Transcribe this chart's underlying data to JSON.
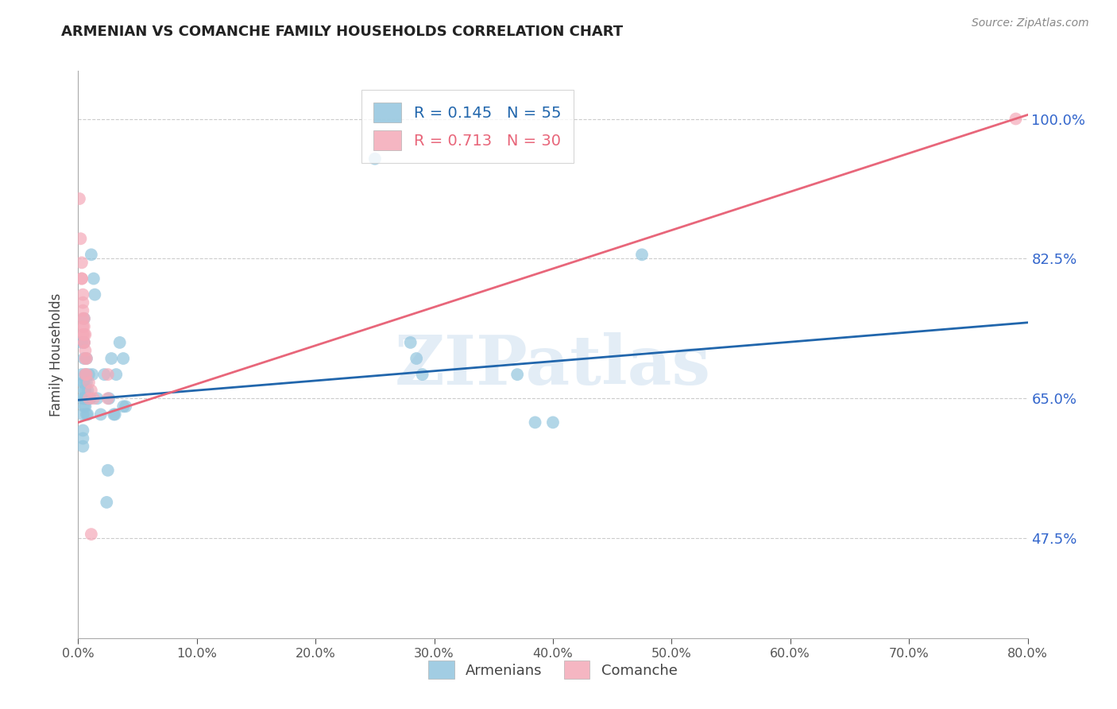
{
  "title": "ARMENIAN VS COMANCHE FAMILY HOUSEHOLDS CORRELATION CHART",
  "source": "Source: ZipAtlas.com",
  "ylabel": "Family Households",
  "ytick_labels": [
    "100.0%",
    "82.5%",
    "65.0%",
    "47.5%"
  ],
  "ytick_values": [
    1.0,
    0.825,
    0.65,
    0.475
  ],
  "legend_entry1": {
    "label": "Armenians",
    "R": "0.145",
    "N": "55",
    "color": "#92c5de"
  },
  "legend_entry2": {
    "label": "Comanche",
    "R": "0.713",
    "N": "30",
    "color": "#f4a9b8"
  },
  "watermark": "ZIPatlas",
  "background_color": "#ffffff",
  "title_color": "#222222",
  "ytick_color": "#3366cc",
  "scatter_armenians": [
    [
      0.003,
      0.72
    ],
    [
      0.003,
      0.68
    ],
    [
      0.004,
      0.67
    ],
    [
      0.004,
      0.65
    ],
    [
      0.004,
      0.63
    ],
    [
      0.004,
      0.61
    ],
    [
      0.004,
      0.6
    ],
    [
      0.004,
      0.59
    ],
    [
      0.005,
      0.75
    ],
    [
      0.005,
      0.72
    ],
    [
      0.005,
      0.7
    ],
    [
      0.005,
      0.67
    ],
    [
      0.005,
      0.66
    ],
    [
      0.005,
      0.65
    ],
    [
      0.005,
      0.64
    ],
    [
      0.006,
      0.68
    ],
    [
      0.006,
      0.66
    ],
    [
      0.006,
      0.65
    ],
    [
      0.006,
      0.64
    ],
    [
      0.007,
      0.7
    ],
    [
      0.007,
      0.67
    ],
    [
      0.007,
      0.65
    ],
    [
      0.007,
      0.63
    ],
    [
      0.008,
      0.66
    ],
    [
      0.008,
      0.65
    ],
    [
      0.008,
      0.63
    ],
    [
      0.009,
      0.68
    ],
    [
      0.009,
      0.65
    ],
    [
      0.01,
      0.65
    ],
    [
      0.011,
      0.83
    ],
    [
      0.012,
      0.68
    ],
    [
      0.013,
      0.8
    ],
    [
      0.014,
      0.78
    ],
    [
      0.016,
      0.65
    ],
    [
      0.019,
      0.63
    ],
    [
      0.022,
      0.68
    ],
    [
      0.024,
      0.52
    ],
    [
      0.025,
      0.56
    ],
    [
      0.026,
      0.65
    ],
    [
      0.028,
      0.7
    ],
    [
      0.03,
      0.63
    ],
    [
      0.031,
      0.63
    ],
    [
      0.032,
      0.68
    ],
    [
      0.035,
      0.72
    ],
    [
      0.038,
      0.7
    ],
    [
      0.038,
      0.64
    ],
    [
      0.04,
      0.64
    ],
    [
      0.25,
      0.95
    ],
    [
      0.28,
      0.72
    ],
    [
      0.285,
      0.7
    ],
    [
      0.29,
      0.68
    ],
    [
      0.37,
      0.68
    ],
    [
      0.385,
      0.62
    ],
    [
      0.4,
      0.62
    ],
    [
      0.475,
      0.83
    ]
  ],
  "scatter_comanche": [
    [
      0.001,
      0.9
    ],
    [
      0.002,
      0.85
    ],
    [
      0.003,
      0.82
    ],
    [
      0.003,
      0.8
    ],
    [
      0.003,
      0.8
    ],
    [
      0.004,
      0.78
    ],
    [
      0.004,
      0.77
    ],
    [
      0.004,
      0.75
    ],
    [
      0.004,
      0.76
    ],
    [
      0.004,
      0.74
    ],
    [
      0.004,
      0.73
    ],
    [
      0.005,
      0.75
    ],
    [
      0.005,
      0.73
    ],
    [
      0.005,
      0.72
    ],
    [
      0.005,
      0.74
    ],
    [
      0.005,
      0.72
    ],
    [
      0.006,
      0.73
    ],
    [
      0.006,
      0.7
    ],
    [
      0.006,
      0.71
    ],
    [
      0.006,
      0.68
    ],
    [
      0.007,
      0.7
    ],
    [
      0.007,
      0.68
    ],
    [
      0.009,
      0.67
    ],
    [
      0.009,
      0.65
    ],
    [
      0.011,
      0.66
    ],
    [
      0.011,
      0.48
    ],
    [
      0.013,
      0.65
    ],
    [
      0.025,
      0.68
    ],
    [
      0.025,
      0.65
    ],
    [
      0.79,
      1.0
    ]
  ],
  "line_armenians": {
    "x0": 0.0,
    "x1": 0.8,
    "y0": 0.648,
    "y1": 0.745,
    "color": "#2166ac",
    "linewidth": 2.0
  },
  "line_comanche": {
    "x0": 0.0,
    "x1": 0.8,
    "y0": 0.62,
    "y1": 1.005,
    "color": "#e8667a",
    "linewidth": 2.0
  },
  "scatter_color_armenians": "#92c5de",
  "scatter_color_comanche": "#f4a9b8",
  "scatter_alpha": 0.7,
  "scatter_size": 130,
  "xmin": 0.0,
  "xmax": 0.8,
  "ymin": 0.35,
  "ymax": 1.06,
  "xticks": [
    0.0,
    0.1,
    0.2,
    0.3,
    0.4,
    0.5,
    0.6,
    0.7,
    0.8
  ],
  "legend_text_color1": "#2166ac",
  "legend_text_color2": "#e8667a"
}
